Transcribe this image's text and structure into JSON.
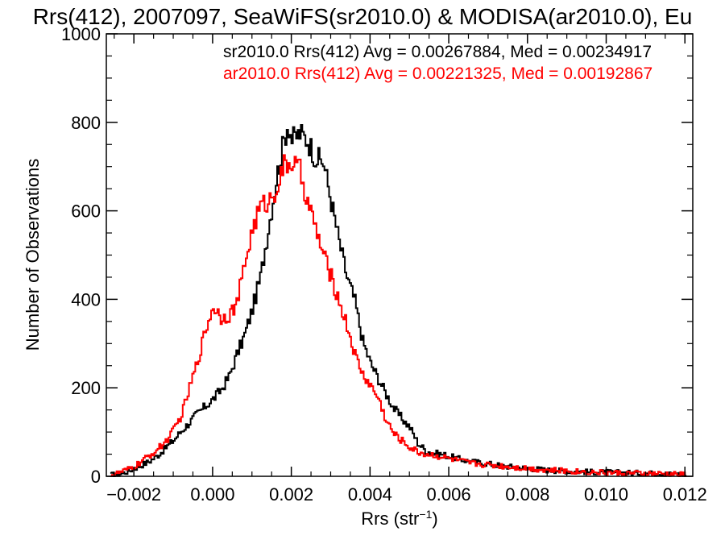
{
  "chart_data": {
    "type": "line",
    "title": "Rrs(412), 2007097, SeaWiFS(sr2010.0) & MODISA(ar2010.0), Eu",
    "xlabel_main": "Rrs (str",
    "xlabel_sup": "−1",
    "xlabel_close": ")",
    "ylabel": "Number of Observations",
    "xlim": [
      -0.0027,
      0.0122
    ],
    "ylim": [
      0,
      1000
    ],
    "xticks": [
      -0.002,
      0.0,
      0.002,
      0.004,
      0.006,
      0.008,
      0.01,
      0.012
    ],
    "xtick_labels": [
      "−0.002",
      "0.000",
      "0.002",
      "0.004",
      "0.006",
      "0.008",
      "0.010",
      "0.012"
    ],
    "yticks": [
      0,
      200,
      400,
      600,
      800,
      1000
    ],
    "ytick_labels": [
      "0",
      "200",
      "400",
      "600",
      "800",
      "1000"
    ],
    "annotations": [
      {
        "text": "sr2010.0 Rrs(412) Avg = 0.00267884, Med = 0.00234917",
        "color": "#000000"
      },
      {
        "text": "ar2010.0 Rrs(412) Avg = 0.00221325, Med = 0.00192867",
        "color": "#ff0000"
      }
    ],
    "series": [
      {
        "color": "#000000",
        "points": [
          [
            -0.0026,
            3
          ],
          [
            -0.0024,
            5
          ],
          [
            -0.0022,
            10
          ],
          [
            -0.002,
            18
          ],
          [
            -0.0018,
            26
          ],
          [
            -0.0016,
            35
          ],
          [
            -0.0014,
            48
          ],
          [
            -0.0012,
            65
          ],
          [
            -0.001,
            82
          ],
          [
            -0.0008,
            103
          ],
          [
            -0.0006,
            122
          ],
          [
            -0.0004,
            142
          ],
          [
            -0.0002,
            158
          ],
          [
            0.0,
            175
          ],
          [
            0.0002,
            196
          ],
          [
            0.0004,
            225
          ],
          [
            0.0006,
            275
          ],
          [
            0.0008,
            320
          ],
          [
            0.001,
            380
          ],
          [
            0.0012,
            450
          ],
          [
            0.0014,
            560
          ],
          [
            0.0016,
            670
          ],
          [
            0.0018,
            760
          ],
          [
            0.0019,
            800
          ],
          [
            0.002,
            760
          ],
          [
            0.0022,
            775
          ],
          [
            0.0024,
            760
          ],
          [
            0.0026,
            720
          ],
          [
            0.0028,
            710
          ],
          [
            0.003,
            620
          ],
          [
            0.0032,
            530
          ],
          [
            0.0034,
            450
          ],
          [
            0.0036,
            395
          ],
          [
            0.0038,
            305
          ],
          [
            0.004,
            255
          ],
          [
            0.0042,
            220
          ],
          [
            0.0044,
            185
          ],
          [
            0.0046,
            152
          ],
          [
            0.0048,
            130
          ],
          [
            0.005,
            110
          ],
          [
            0.0052,
            75
          ],
          [
            0.0054,
            58
          ],
          [
            0.0056,
            52
          ],
          [
            0.0058,
            50
          ],
          [
            0.006,
            45
          ],
          [
            0.0062,
            40
          ],
          [
            0.0065,
            34
          ],
          [
            0.007,
            28
          ],
          [
            0.0075,
            22
          ],
          [
            0.008,
            18
          ],
          [
            0.0085,
            14
          ],
          [
            0.009,
            12
          ],
          [
            0.0095,
            10
          ],
          [
            0.01,
            9
          ],
          [
            0.0105,
            8
          ],
          [
            0.011,
            7
          ],
          [
            0.0115,
            6
          ],
          [
            0.012,
            5
          ]
        ]
      },
      {
        "color": "#ff0000",
        "points": [
          [
            -0.0026,
            3
          ],
          [
            -0.0024,
            8
          ],
          [
            -0.0022,
            14
          ],
          [
            -0.002,
            22
          ],
          [
            -0.0018,
            35
          ],
          [
            -0.0016,
            48
          ],
          [
            -0.0014,
            62
          ],
          [
            -0.0012,
            80
          ],
          [
            -0.001,
            105
          ],
          [
            -0.0008,
            140
          ],
          [
            -0.0006,
            200
          ],
          [
            -0.0004,
            260
          ],
          [
            -0.0002,
            330
          ],
          [
            0.0,
            385
          ],
          [
            0.0002,
            360
          ],
          [
            0.0004,
            365
          ],
          [
            0.0006,
            390
          ],
          [
            0.0008,
            480
          ],
          [
            0.001,
            560
          ],
          [
            0.0012,
            610
          ],
          [
            0.0014,
            620
          ],
          [
            0.0016,
            650
          ],
          [
            0.0018,
            700
          ],
          [
            0.002,
            710
          ],
          [
            0.0022,
            690
          ],
          [
            0.0024,
            620
          ],
          [
            0.0026,
            560
          ],
          [
            0.0028,
            500
          ],
          [
            0.003,
            450
          ],
          [
            0.0032,
            395
          ],
          [
            0.0034,
            340
          ],
          [
            0.0036,
            275
          ],
          [
            0.0038,
            230
          ],
          [
            0.004,
            205
          ],
          [
            0.0042,
            175
          ],
          [
            0.0044,
            125
          ],
          [
            0.0046,
            95
          ],
          [
            0.0048,
            80
          ],
          [
            0.005,
            65
          ],
          [
            0.0052,
            55
          ],
          [
            0.0054,
            50
          ],
          [
            0.0056,
            48
          ],
          [
            0.0058,
            44
          ],
          [
            0.006,
            40
          ],
          [
            0.0062,
            36
          ],
          [
            0.0065,
            30
          ],
          [
            0.007,
            26
          ],
          [
            0.0075,
            22
          ],
          [
            0.008,
            18
          ],
          [
            0.0085,
            14
          ],
          [
            0.009,
            12
          ],
          [
            0.0095,
            10
          ],
          [
            0.01,
            8
          ],
          [
            0.0105,
            7
          ],
          [
            0.011,
            6
          ],
          [
            0.0115,
            5
          ],
          [
            0.012,
            4
          ]
        ]
      }
    ]
  }
}
